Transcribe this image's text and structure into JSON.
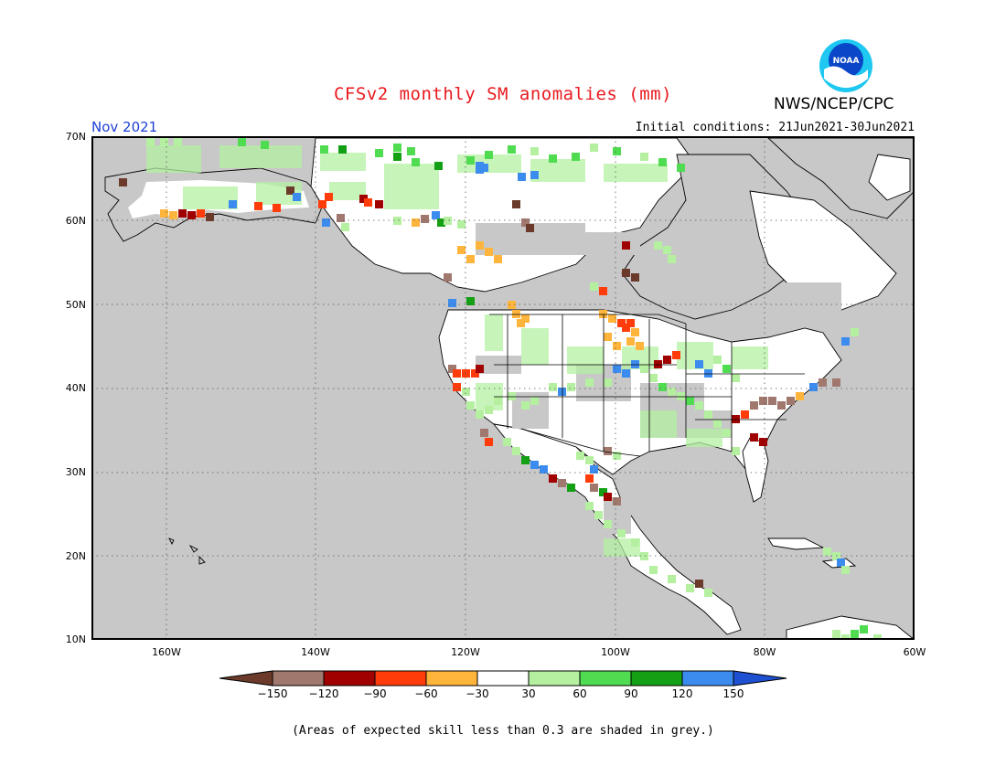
{
  "title": "CFSv2 monthly SM anomalies (mm)",
  "agency": "NWS/NCEP/CPC",
  "logo_text": "NOAA",
  "month_label": "Nov 2021",
  "initial_conditions": "Initial conditions: 21Jun2021-30Jun2021",
  "footnote": "(Areas of expected skill less than 0.3 are shaded in grey.)",
  "map": {
    "lon_range": [
      -171,
      -60
    ],
    "lat_range": [
      10,
      70
    ],
    "lat_labels": [
      "70N",
      "60N",
      "50N",
      "40N",
      "30N",
      "20N",
      "10N"
    ],
    "lon_labels": [
      "160W",
      "140W",
      "120W",
      "100W",
      "80W",
      "60W"
    ],
    "colors": {
      "background": "#c8c8c8",
      "land_white": "#ffffff",
      "grid": "#555555"
    }
  },
  "colorbar": {
    "labels": [
      "−150",
      "−120",
      "−90",
      "−60",
      "−30",
      "30",
      "60",
      "90",
      "120",
      "150"
    ],
    "colors": [
      "#6b3a2a",
      "#a0786e",
      "#a00000",
      "#ff3c0a",
      "#ffb43c",
      "#ffffff",
      "#b4f0a0",
      "#50dc50",
      "#14a014",
      "#3c8cf0",
      "#1e50d2"
    ]
  }
}
